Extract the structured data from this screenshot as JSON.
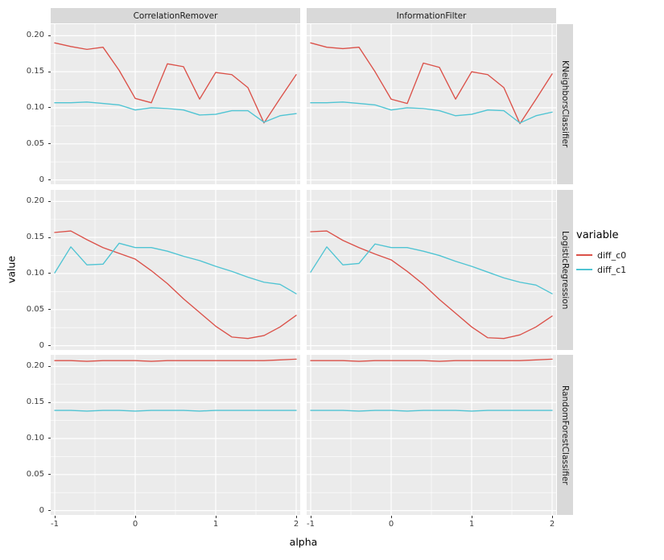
{
  "chart_data": {
    "type": "line",
    "title": "",
    "xlabel": "alpha",
    "ylabel": "value",
    "legend_title": "variable",
    "legend_position": "right",
    "grid": true,
    "col_facets": [
      "CorrelationRemover",
      "InformationFilter"
    ],
    "row_facets": [
      "KNeighborsClassifier",
      "LogisticRegression",
      "RandomForestClassifier"
    ],
    "x_ticks": [
      -1,
      0,
      1,
      2
    ],
    "x_tick_labels": [
      "-1",
      "0",
      "1",
      "2"
    ],
    "y_ticks": [
      0,
      0.05,
      0.1,
      0.15,
      0.2
    ],
    "y_tick_labels": [
      "0",
      "0.05",
      "0.10",
      "0.15",
      "0.20"
    ],
    "xlim": [
      -1.05,
      2.05
    ],
    "ylim": [
      -0.006,
      0.216
    ],
    "colors": {
      "panel_bg": "#EBEBEB",
      "strip_bg": "#D9D9D9",
      "grid": "#FFFFFF",
      "tick": "#333333"
    },
    "series_colors": {
      "diff_c0": "#DB5149",
      "diff_c1": "#4FC4D3"
    },
    "legend_entries": [
      "diff_c0",
      "diff_c1"
    ],
    "x": [
      -1.0,
      -0.8,
      -0.6,
      -0.4,
      -0.2,
      0.0,
      0.2,
      0.4,
      0.6,
      0.8,
      1.0,
      1.2,
      1.4,
      1.6,
      1.8,
      2.0
    ],
    "facets": [
      {
        "row": "KNeighborsClassifier",
        "col": "CorrelationRemover",
        "series": [
          {
            "name": "diff_c0",
            "values": [
              0.19,
              0.185,
              0.181,
              0.184,
              0.152,
              0.113,
              0.107,
              0.161,
              0.157,
              0.112,
              0.149,
              0.146,
              0.128,
              0.079,
              0.113,
              0.146
            ]
          },
          {
            "name": "diff_c1",
            "values": [
              0.107,
              0.107,
              0.108,
              0.106,
              0.104,
              0.097,
              0.1,
              0.099,
              0.097,
              0.09,
              0.091,
              0.096,
              0.096,
              0.08,
              0.089,
              0.092
            ]
          }
        ]
      },
      {
        "row": "KNeighborsClassifier",
        "col": "InformationFilter",
        "series": [
          {
            "name": "diff_c0",
            "values": [
              0.19,
              0.184,
              0.182,
              0.184,
              0.15,
              0.112,
              0.106,
              0.162,
              0.156,
              0.112,
              0.15,
              0.146,
              0.128,
              0.078,
              0.112,
              0.147
            ]
          },
          {
            "name": "diff_c1",
            "values": [
              0.107,
              0.107,
              0.108,
              0.106,
              0.104,
              0.097,
              0.1,
              0.099,
              0.096,
              0.089,
              0.091,
              0.097,
              0.096,
              0.079,
              0.089,
              0.094
            ]
          }
        ]
      },
      {
        "row": "LogisticRegression",
        "col": "CorrelationRemover",
        "series": [
          {
            "name": "diff_c0",
            "values": [
              0.157,
              0.159,
              0.147,
              0.136,
              0.128,
              0.12,
              0.104,
              0.086,
              0.065,
              0.046,
              0.027,
              0.012,
              0.01,
              0.014,
              0.026,
              0.042
            ]
          },
          {
            "name": "diff_c1",
            "values": [
              0.101,
              0.137,
              0.112,
              0.113,
              0.142,
              0.136,
              0.136,
              0.131,
              0.124,
              0.118,
              0.11,
              0.103,
              0.095,
              0.088,
              0.085,
              0.072
            ]
          }
        ]
      },
      {
        "row": "LogisticRegression",
        "col": "InformationFilter",
        "series": [
          {
            "name": "diff_c0",
            "values": [
              0.158,
              0.159,
              0.146,
              0.136,
              0.127,
              0.119,
              0.103,
              0.085,
              0.064,
              0.045,
              0.026,
              0.011,
              0.01,
              0.015,
              0.026,
              0.041
            ]
          },
          {
            "name": "diff_c1",
            "values": [
              0.102,
              0.137,
              0.112,
              0.114,
              0.141,
              0.136,
              0.136,
              0.131,
              0.125,
              0.117,
              0.11,
              0.102,
              0.094,
              0.088,
              0.084,
              0.072
            ]
          }
        ]
      },
      {
        "row": "RandomForestClassifier",
        "col": "CorrelationRemover",
        "series": [
          {
            "name": "diff_c0",
            "values": [
              0.208,
              0.208,
              0.207,
              0.208,
              0.208,
              0.208,
              0.207,
              0.208,
              0.208,
              0.208,
              0.208,
              0.208,
              0.208,
              0.208,
              0.209,
              0.21
            ]
          },
          {
            "name": "diff_c1",
            "values": [
              0.139,
              0.139,
              0.138,
              0.139,
              0.139,
              0.138,
              0.139,
              0.139,
              0.139,
              0.138,
              0.139,
              0.139,
              0.139,
              0.139,
              0.139,
              0.139
            ]
          }
        ]
      },
      {
        "row": "RandomForestClassifier",
        "col": "InformationFilter",
        "series": [
          {
            "name": "diff_c0",
            "values": [
              0.208,
              0.208,
              0.208,
              0.207,
              0.208,
              0.208,
              0.208,
              0.208,
              0.207,
              0.208,
              0.208,
              0.208,
              0.208,
              0.208,
              0.209,
              0.21
            ]
          },
          {
            "name": "diff_c1",
            "values": [
              0.139,
              0.139,
              0.139,
              0.138,
              0.139,
              0.139,
              0.138,
              0.139,
              0.139,
              0.139,
              0.138,
              0.139,
              0.139,
              0.139,
              0.139,
              0.139
            ]
          }
        ]
      }
    ]
  }
}
